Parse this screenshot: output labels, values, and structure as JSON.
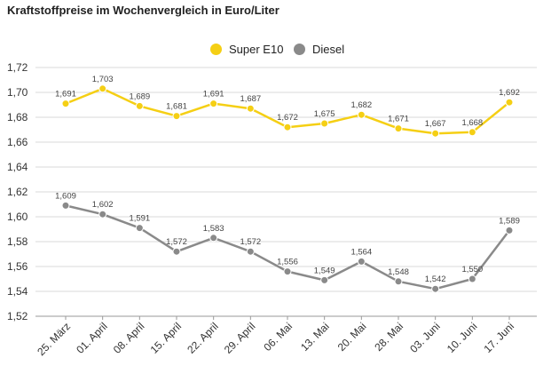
{
  "chart_data": {
    "type": "line",
    "title": "Kraftstoffpreise im Wochenvergleich in Euro/Liter",
    "categories": [
      "25. März",
      "01. April",
      "08. April",
      "15. April",
      "22. April",
      "29. April",
      "06. Mai",
      "13. Mai",
      "20. Mai",
      "28. Mai",
      "03. Juni",
      "10. Juni",
      "17. Juni"
    ],
    "series": [
      {
        "name": "Super E10",
        "color": "#f5cf14",
        "values": [
          1.691,
          1.703,
          1.689,
          1.681,
          1.691,
          1.687,
          1.672,
          1.675,
          1.682,
          1.671,
          1.667,
          1.668,
          1.692
        ],
        "labels": [
          "1,691",
          "1,703",
          "1,689",
          "1,681",
          "1,691",
          "1,687",
          "1,672",
          "1,675",
          "1,682",
          "1,671",
          "1,667",
          "1,668",
          "1,692"
        ]
      },
      {
        "name": "Diesel",
        "color": "#8a8a8a",
        "values": [
          1.609,
          1.602,
          1.591,
          1.572,
          1.583,
          1.572,
          1.556,
          1.549,
          1.564,
          1.548,
          1.542,
          1.55,
          1.589
        ],
        "labels": [
          "1,609",
          "1,602",
          "1,591",
          "1,572",
          "1,583",
          "1,572",
          "1,556",
          "1,549",
          "1,564",
          "1,548",
          "1,542",
          "1,550",
          "1,589"
        ]
      }
    ],
    "yticks": [
      1.52,
      1.54,
      1.56,
      1.58,
      1.6,
      1.62,
      1.64,
      1.66,
      1.68,
      1.7,
      1.72
    ],
    "ytick_labels": [
      "1,52",
      "1,54",
      "1,56",
      "1,58",
      "1,60",
      "1,62",
      "1,64",
      "1,66",
      "1,68",
      "1,70",
      "1,72"
    ],
    "ylim": [
      1.52,
      1.72
    ],
    "grid": "horizontal",
    "legend_position": "top-center"
  }
}
